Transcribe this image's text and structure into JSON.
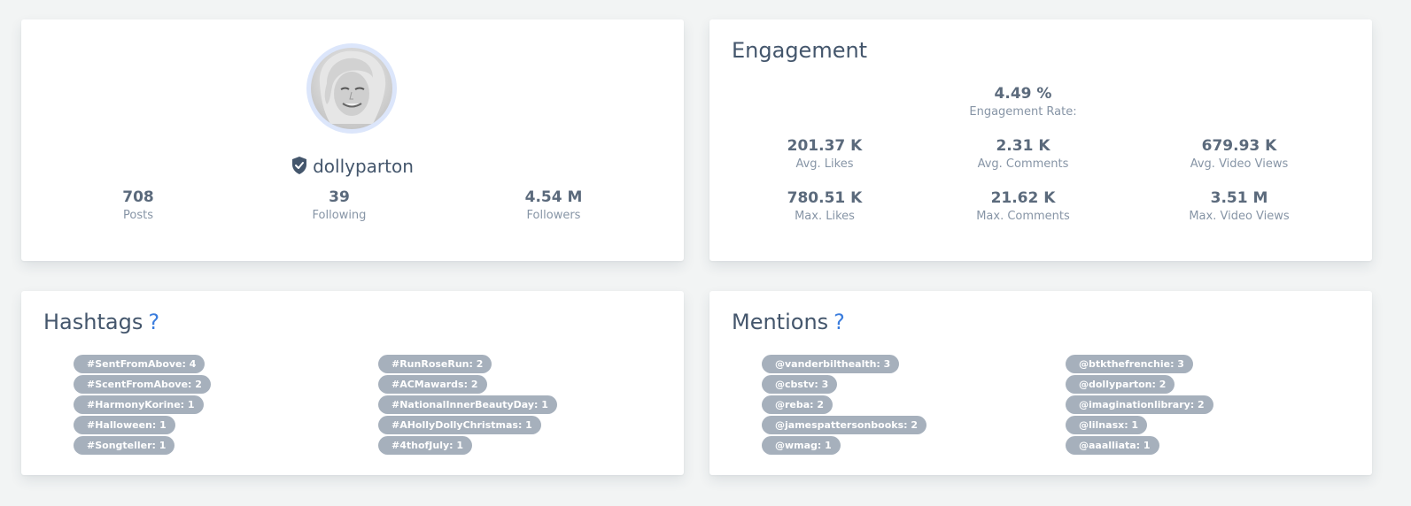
{
  "profile": {
    "username": "dollyparton",
    "stats": [
      {
        "value": "708",
        "label": "Posts"
      },
      {
        "value": "39",
        "label": "Following"
      },
      {
        "value": "4.54 M",
        "label": "Followers"
      }
    ],
    "verified_icon": "shield-check-icon",
    "avatar": "profile-photo"
  },
  "engagement": {
    "title": "Engagement",
    "rate": {
      "value": "4.49 %",
      "label": "Engagement Rate:"
    },
    "metrics": [
      {
        "value": "201.37 K",
        "label": "Avg. Likes"
      },
      {
        "value": "2.31 K",
        "label": "Avg. Comments"
      },
      {
        "value": "679.93 K",
        "label": "Avg. Video Views"
      },
      {
        "value": "780.51 K",
        "label": "Max. Likes"
      },
      {
        "value": "21.62 K",
        "label": "Max. Comments"
      },
      {
        "value": "3.51 M",
        "label": "Max. Video Views"
      }
    ]
  },
  "hashtags": {
    "title": "Hashtags",
    "help": "?",
    "left": [
      "#SentFromAbove: 4",
      "#ScentFromAbove: 2",
      "#HarmonyKorine: 1",
      "#Halloween: 1",
      "#Songteller: 1"
    ],
    "right": [
      "#RunRoseRun: 2",
      "#ACMawards: 2",
      "#NationalInnerBeautyDay: 1",
      "#AHollyDollyChristmas: 1",
      "#4thofJuly: 1"
    ]
  },
  "mentions": {
    "title": "Mentions",
    "help": "?",
    "left": [
      "@vanderbilthealth: 3",
      "@cbstv: 3",
      "@reba: 2",
      "@jamespattersonbooks: 2",
      "@wmag: 1"
    ],
    "right": [
      "@btkthefrenchie: 3",
      "@dollyparton: 2",
      "@imaginationlibrary: 2",
      "@lilnasx: 1",
      "@aaalliata: 1"
    ]
  },
  "colors": {
    "accent": "#3b7ddd",
    "tag_bg": "#a6b0bc",
    "avatar_ring": "#dce6fb",
    "text": "#44566c"
  }
}
